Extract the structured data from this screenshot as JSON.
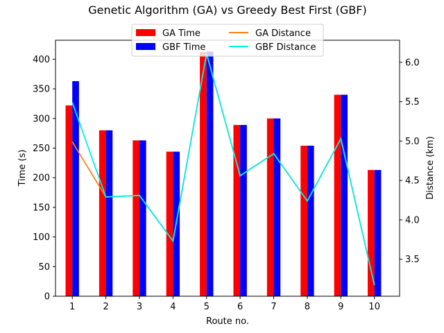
{
  "chart_data": {
    "type": "bar",
    "title": "Genetic Algorithm (GA) vs Greedy Best First (GBF)",
    "xlabel": "Route no.",
    "ylabel": "Time (s)",
    "y2label": "Distance (km)",
    "categories": [
      "1",
      "2",
      "3",
      "4",
      "5",
      "6",
      "7",
      "8",
      "9",
      "10"
    ],
    "ylim": [
      0,
      432
    ],
    "y2lim": [
      3.03,
      6.28
    ],
    "yticks": [
      0,
      50,
      100,
      150,
      200,
      250,
      300,
      350,
      400
    ],
    "y2ticks": [
      "3.5",
      "4.0",
      "4.5",
      "5.0",
      "5.5",
      "6.0"
    ],
    "grid": false,
    "legend_position": "top-center",
    "bar_series": [
      {
        "name": "GA Time",
        "color": "#ff0000",
        "values": [
          322,
          280,
          263,
          244,
          412,
          289,
          300,
          254,
          340,
          213
        ]
      },
      {
        "name": "GBF Time",
        "color": "#0000ff",
        "values": [
          363,
          280,
          263,
          244,
          413,
          289,
          300,
          254,
          340,
          213
        ]
      }
    ],
    "line_series": [
      {
        "name": "GA Distance",
        "color": "#ff7f0e",
        "values": [
          4.99,
          4.29,
          4.31,
          3.73,
          6.11,
          4.56,
          4.84,
          4.24,
          5.03,
          3.17
        ]
      },
      {
        "name": "GBF Distance",
        "color": "#00eeee",
        "values": [
          5.49,
          4.29,
          4.31,
          3.73,
          6.11,
          4.56,
          4.84,
          4.24,
          5.03,
          3.17
        ]
      }
    ]
  }
}
